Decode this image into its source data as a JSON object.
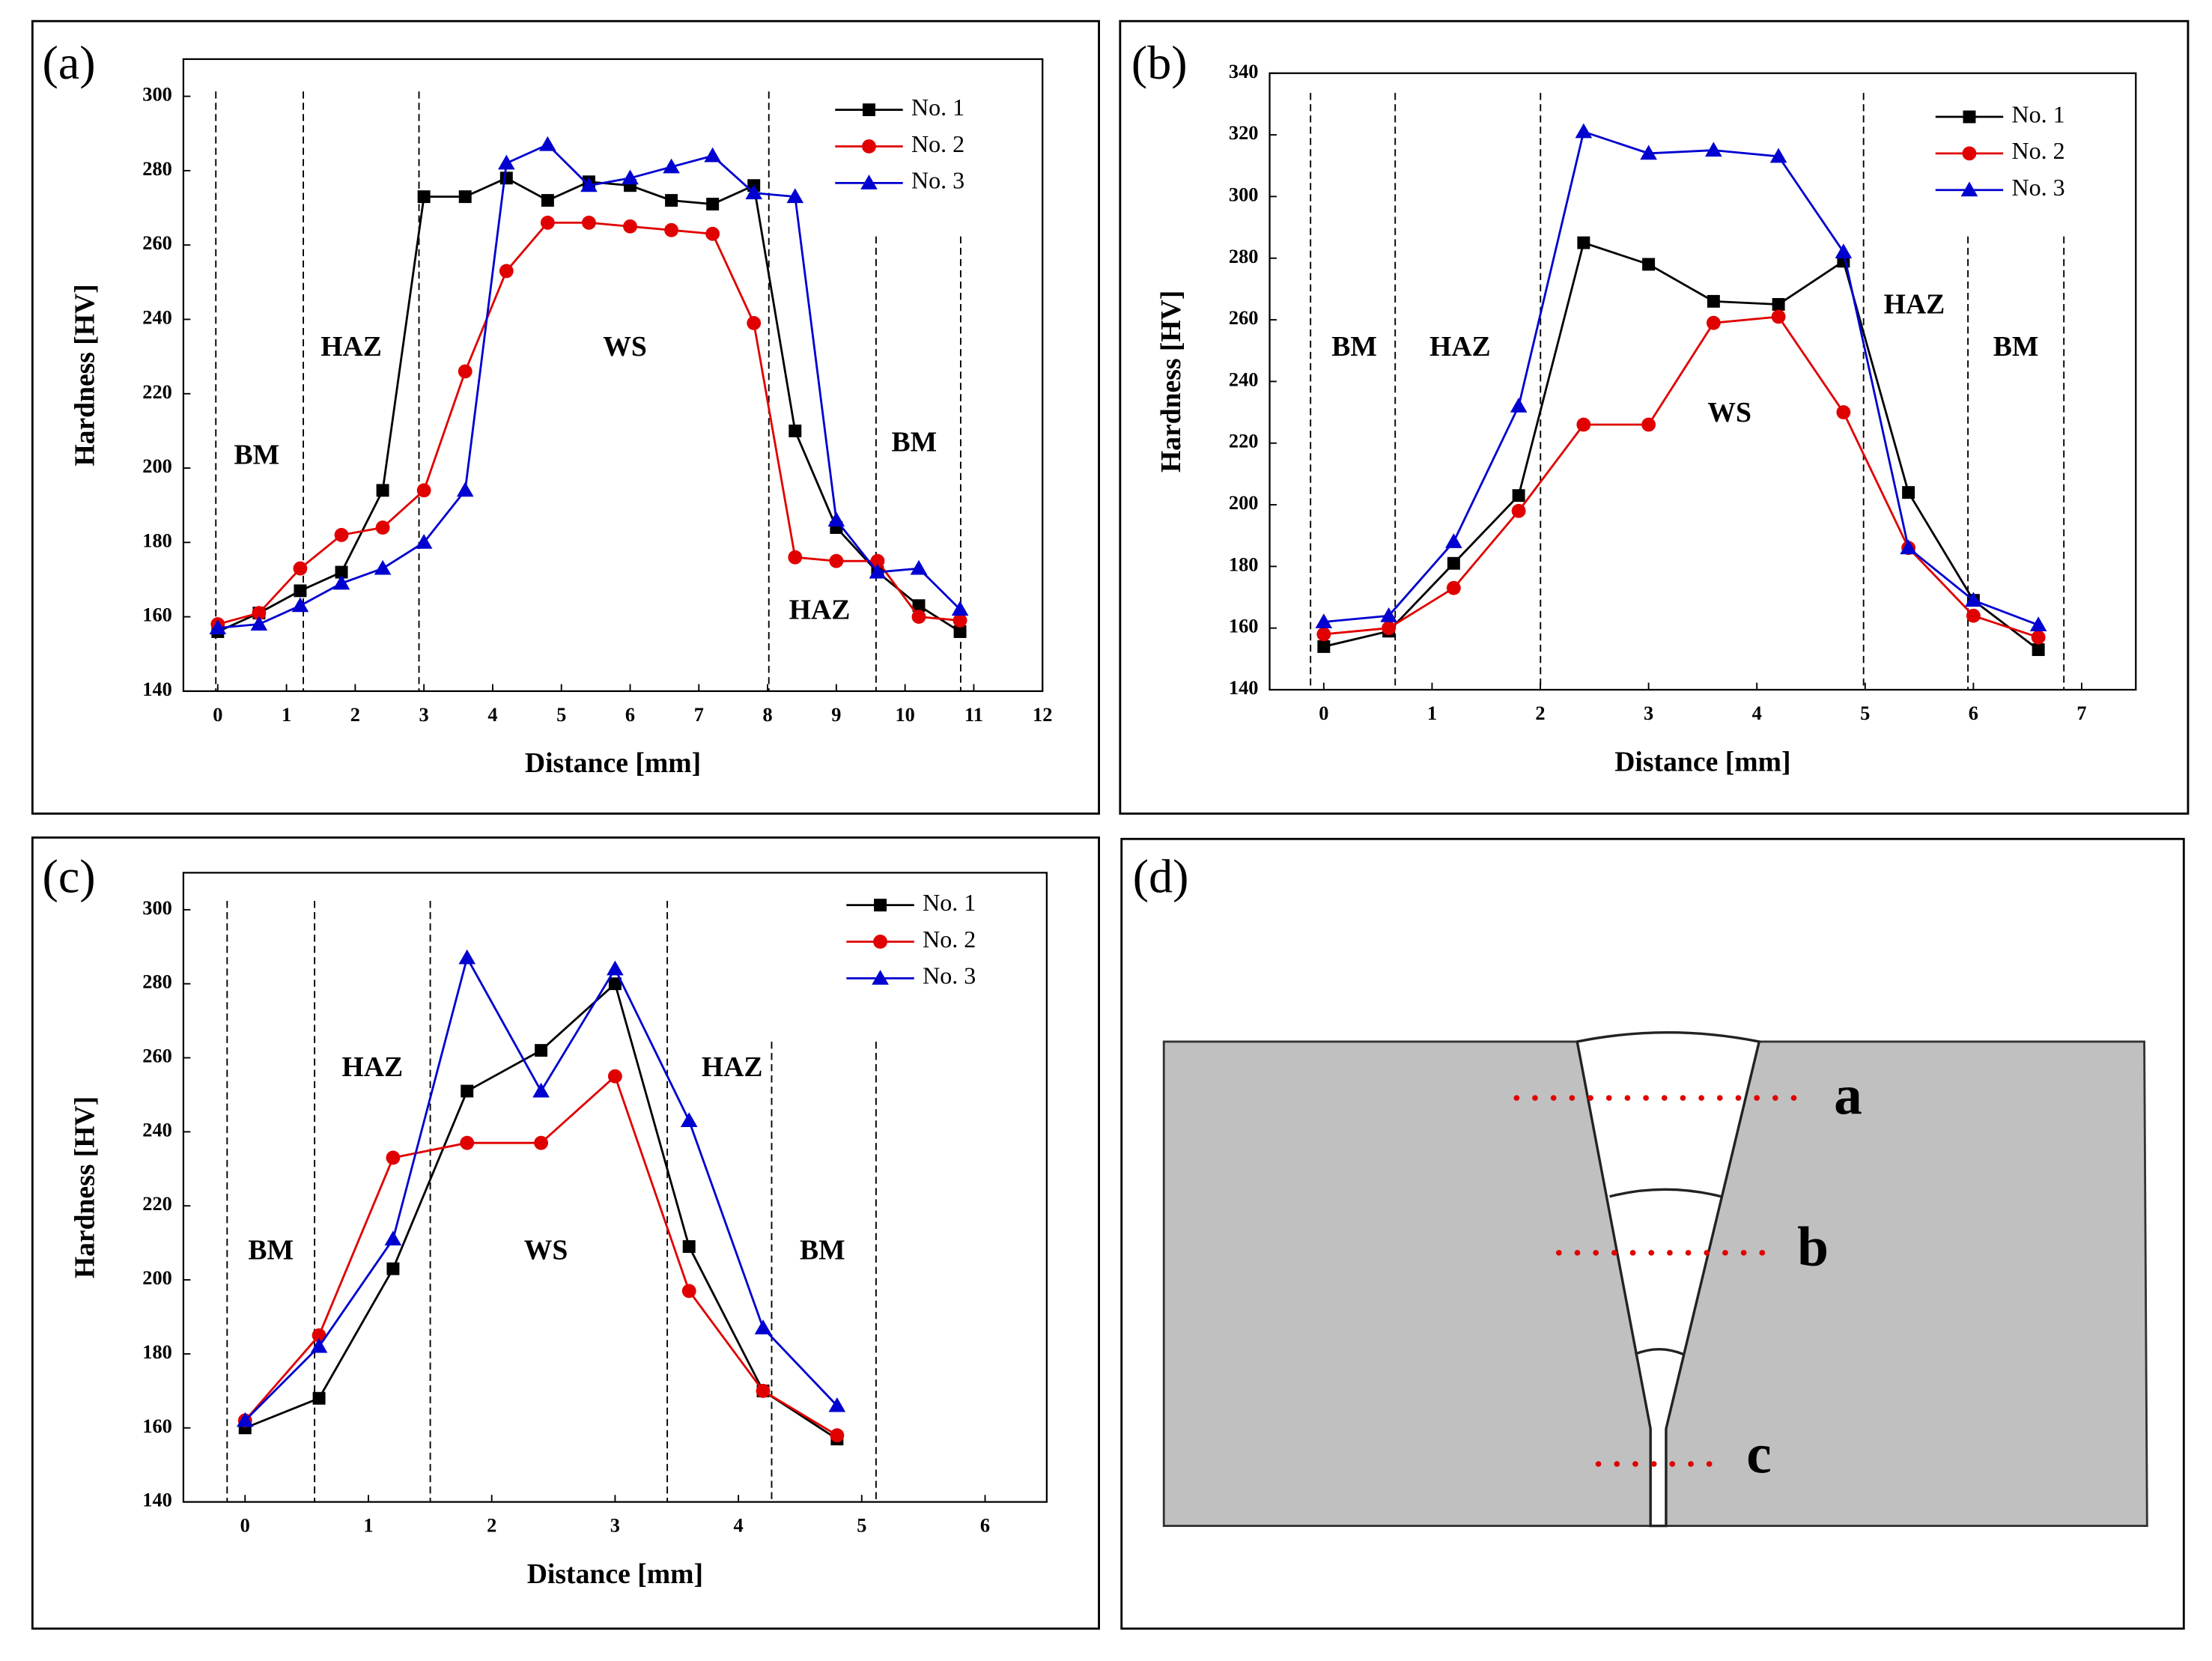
{
  "chart_data": [
    {
      "type": "line",
      "panel": "(a)",
      "x_label": "Distance [mm]",
      "y_label": "Hardness [HV]",
      "x": [
        0,
        0.6,
        1.2,
        1.8,
        2.4,
        3.0,
        3.6,
        4.2,
        4.8,
        5.4,
        6.0,
        6.6,
        7.2,
        7.8,
        8.4,
        9.0,
        9.6,
        10.2,
        10.8
      ],
      "series": [
        {
          "name": "No. 1",
          "color": "#000000",
          "marker": "square",
          "values": [
            156,
            161,
            167,
            172,
            194,
            273,
            273,
            278,
            272,
            277,
            276,
            272,
            271,
            276,
            210,
            184,
            172,
            163,
            156
          ]
        },
        {
          "name": "No. 2",
          "color": "#e00000",
          "marker": "circle",
          "values": [
            158,
            161,
            173,
            182,
            184,
            194,
            226,
            253,
            266,
            266,
            265,
            264,
            263,
            239,
            176,
            175,
            175,
            160,
            159
          ]
        },
        {
          "name": "No. 3",
          "color": "#0000d0",
          "marker": "triangle",
          "values": [
            157,
            158,
            163,
            169,
            173,
            180,
            194,
            282,
            287,
            276,
            278,
            281,
            284,
            274,
            273,
            186,
            172,
            173,
            162
          ]
        }
      ],
      "xlim": [
        -0.5,
        12
      ],
      "xticks": [
        0,
        1,
        2,
        3,
        4,
        5,
        6,
        7,
        8,
        9,
        10,
        11,
        12
      ],
      "ylim": [
        140,
        310
      ],
      "yticks": [
        140,
        160,
        180,
        200,
        220,
        240,
        260,
        280,
        300
      ],
      "annotations": [
        "BM",
        "HAZ",
        "WS",
        "HAZ",
        "BM"
      ],
      "legend": "upper right"
    },
    {
      "type": "line",
      "panel": "(b)",
      "x_label": "Distance [mm]",
      "y_label": "Hardness [HV]",
      "x": [
        0,
        0.6,
        1.2,
        1.8,
        2.4,
        3.0,
        3.6,
        4.2,
        4.8,
        5.4,
        6.0,
        6.6
      ],
      "series": [
        {
          "name": "No. 1",
          "color": "#000000",
          "marker": "square",
          "values": [
            154,
            159,
            181,
            203,
            285,
            278,
            266,
            265,
            279,
            204,
            169,
            153
          ]
        },
        {
          "name": "No. 2",
          "color": "#e00000",
          "marker": "circle",
          "values": [
            158,
            160,
            173,
            198,
            226,
            226,
            259,
            261,
            230,
            186,
            164,
            157
          ]
        },
        {
          "name": "No. 3",
          "color": "#0000d0",
          "marker": "triangle",
          "values": [
            162,
            164,
            188,
            232,
            321,
            314,
            315,
            313,
            282,
            186,
            169,
            161
          ]
        }
      ],
      "xlim": [
        -0.5,
        7.5
      ],
      "xticks": [
        0,
        1,
        2,
        3,
        4,
        5,
        6,
        7
      ],
      "ylim": [
        140,
        340
      ],
      "yticks": [
        140,
        160,
        180,
        200,
        220,
        240,
        260,
        280,
        300,
        320,
        340
      ],
      "annotations": [
        "BM",
        "HAZ",
        "WS",
        "HAZ",
        "BM"
      ],
      "legend": "upper right"
    },
    {
      "type": "line",
      "panel": "(c)",
      "x_label": "Distance [mm]",
      "y_label": "Hardness [HV]",
      "x": [
        0,
        0.6,
        1.2,
        1.8,
        2.4,
        3.0,
        3.6,
        4.2,
        4.8
      ],
      "series": [
        {
          "name": "No. 1",
          "color": "#000000",
          "marker": "square",
          "values": [
            160,
            168,
            203,
            251,
            262,
            280,
            209,
            170,
            157
          ]
        },
        {
          "name": "No. 2",
          "color": "#e00000",
          "marker": "circle",
          "values": [
            162,
            185,
            233,
            237,
            237,
            255,
            197,
            170,
            158
          ]
        },
        {
          "name": "No. 3",
          "color": "#0000d0",
          "marker": "triangle",
          "values": [
            162,
            182,
            211,
            287,
            251,
            284,
            243,
            187,
            166
          ]
        }
      ],
      "xlim": [
        -0.5,
        6.5
      ],
      "xticks": [
        0,
        1,
        2,
        3,
        4,
        5,
        6
      ],
      "ylim": [
        140,
        310
      ],
      "yticks": [
        140,
        160,
        180,
        200,
        220,
        240,
        260,
        280,
        300
      ],
      "annotations": [
        "BM",
        "HAZ",
        "WS",
        "HAZ",
        "BM"
      ],
      "legend": "upper right"
    }
  ],
  "diagram": {
    "panel": "(d)",
    "lines": [
      "a",
      "b",
      "c"
    ]
  }
}
